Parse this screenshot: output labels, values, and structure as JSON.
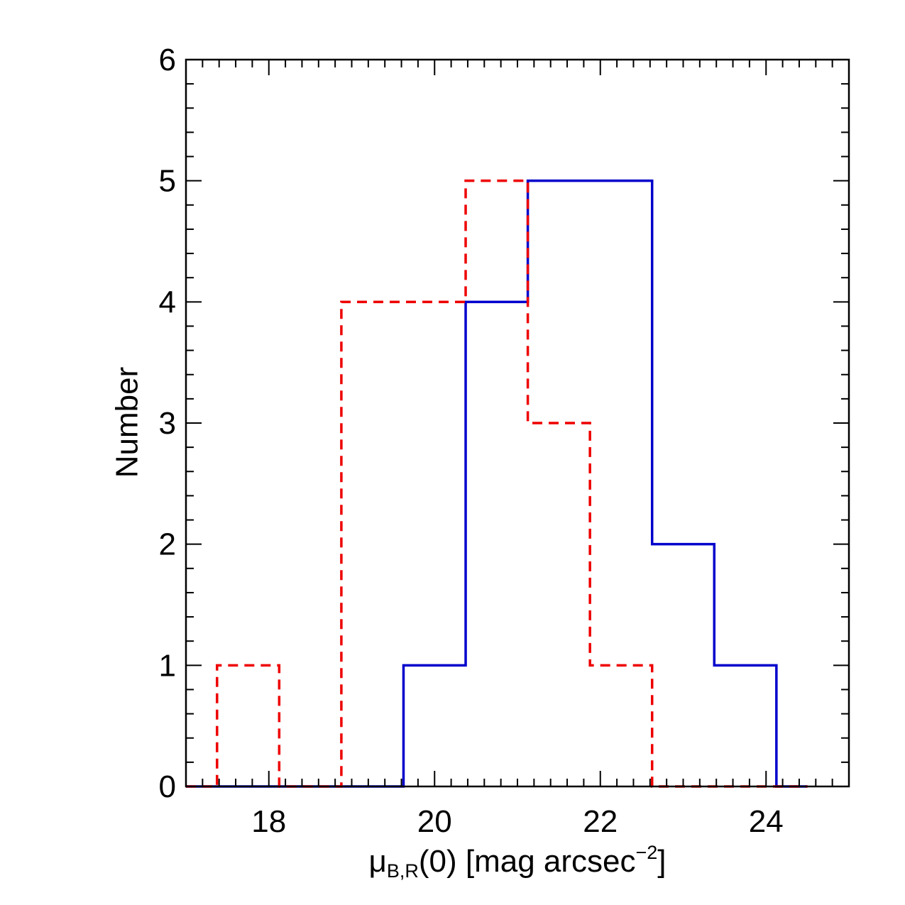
{
  "chart_data": {
    "type": "histogram",
    "title": "",
    "xlabel": {
      "symbol": "μ",
      "subscript": "B,R",
      "rest": "(0) [mag arcsec",
      "superscript": "−2",
      "close": "]"
    },
    "ylabel": "Number",
    "xlim": [
      17,
      25
    ],
    "ylim": [
      0,
      6
    ],
    "x_ticks": [
      18,
      20,
      22,
      24
    ],
    "y_ticks": [
      0,
      1,
      2,
      3,
      4,
      5,
      6
    ],
    "grid": false,
    "bin_width": 0.75,
    "series": [
      {
        "color": "#0000cc",
        "line_style": "solid",
        "x_min": 17.0,
        "x_max": 24.5,
        "bins": [
          {
            "x0": 19.625,
            "x1": 20.375,
            "count": 1
          },
          {
            "x0": 20.375,
            "x1": 21.125,
            "count": 4
          },
          {
            "x0": 21.125,
            "x1": 21.875,
            "count": 5
          },
          {
            "x0": 21.875,
            "x1": 22.625,
            "count": 5
          },
          {
            "x0": 22.625,
            "x1": 23.375,
            "count": 2
          },
          {
            "x0": 23.375,
            "x1": 24.125,
            "count": 1
          }
        ]
      },
      {
        "color": "#ee0000",
        "line_style": "dashed",
        "x_min": 17.0,
        "x_max": 24.5,
        "bins": [
          {
            "x0": 17.375,
            "x1": 18.125,
            "count": 1
          },
          {
            "x0": 18.875,
            "x1": 19.625,
            "count": 4
          },
          {
            "x0": 19.625,
            "x1": 20.375,
            "count": 4
          },
          {
            "x0": 20.375,
            "x1": 21.125,
            "count": 5
          },
          {
            "x0": 21.125,
            "x1": 21.875,
            "count": 3
          },
          {
            "x0": 21.875,
            "x1": 22.625,
            "count": 1
          }
        ]
      }
    ]
  }
}
